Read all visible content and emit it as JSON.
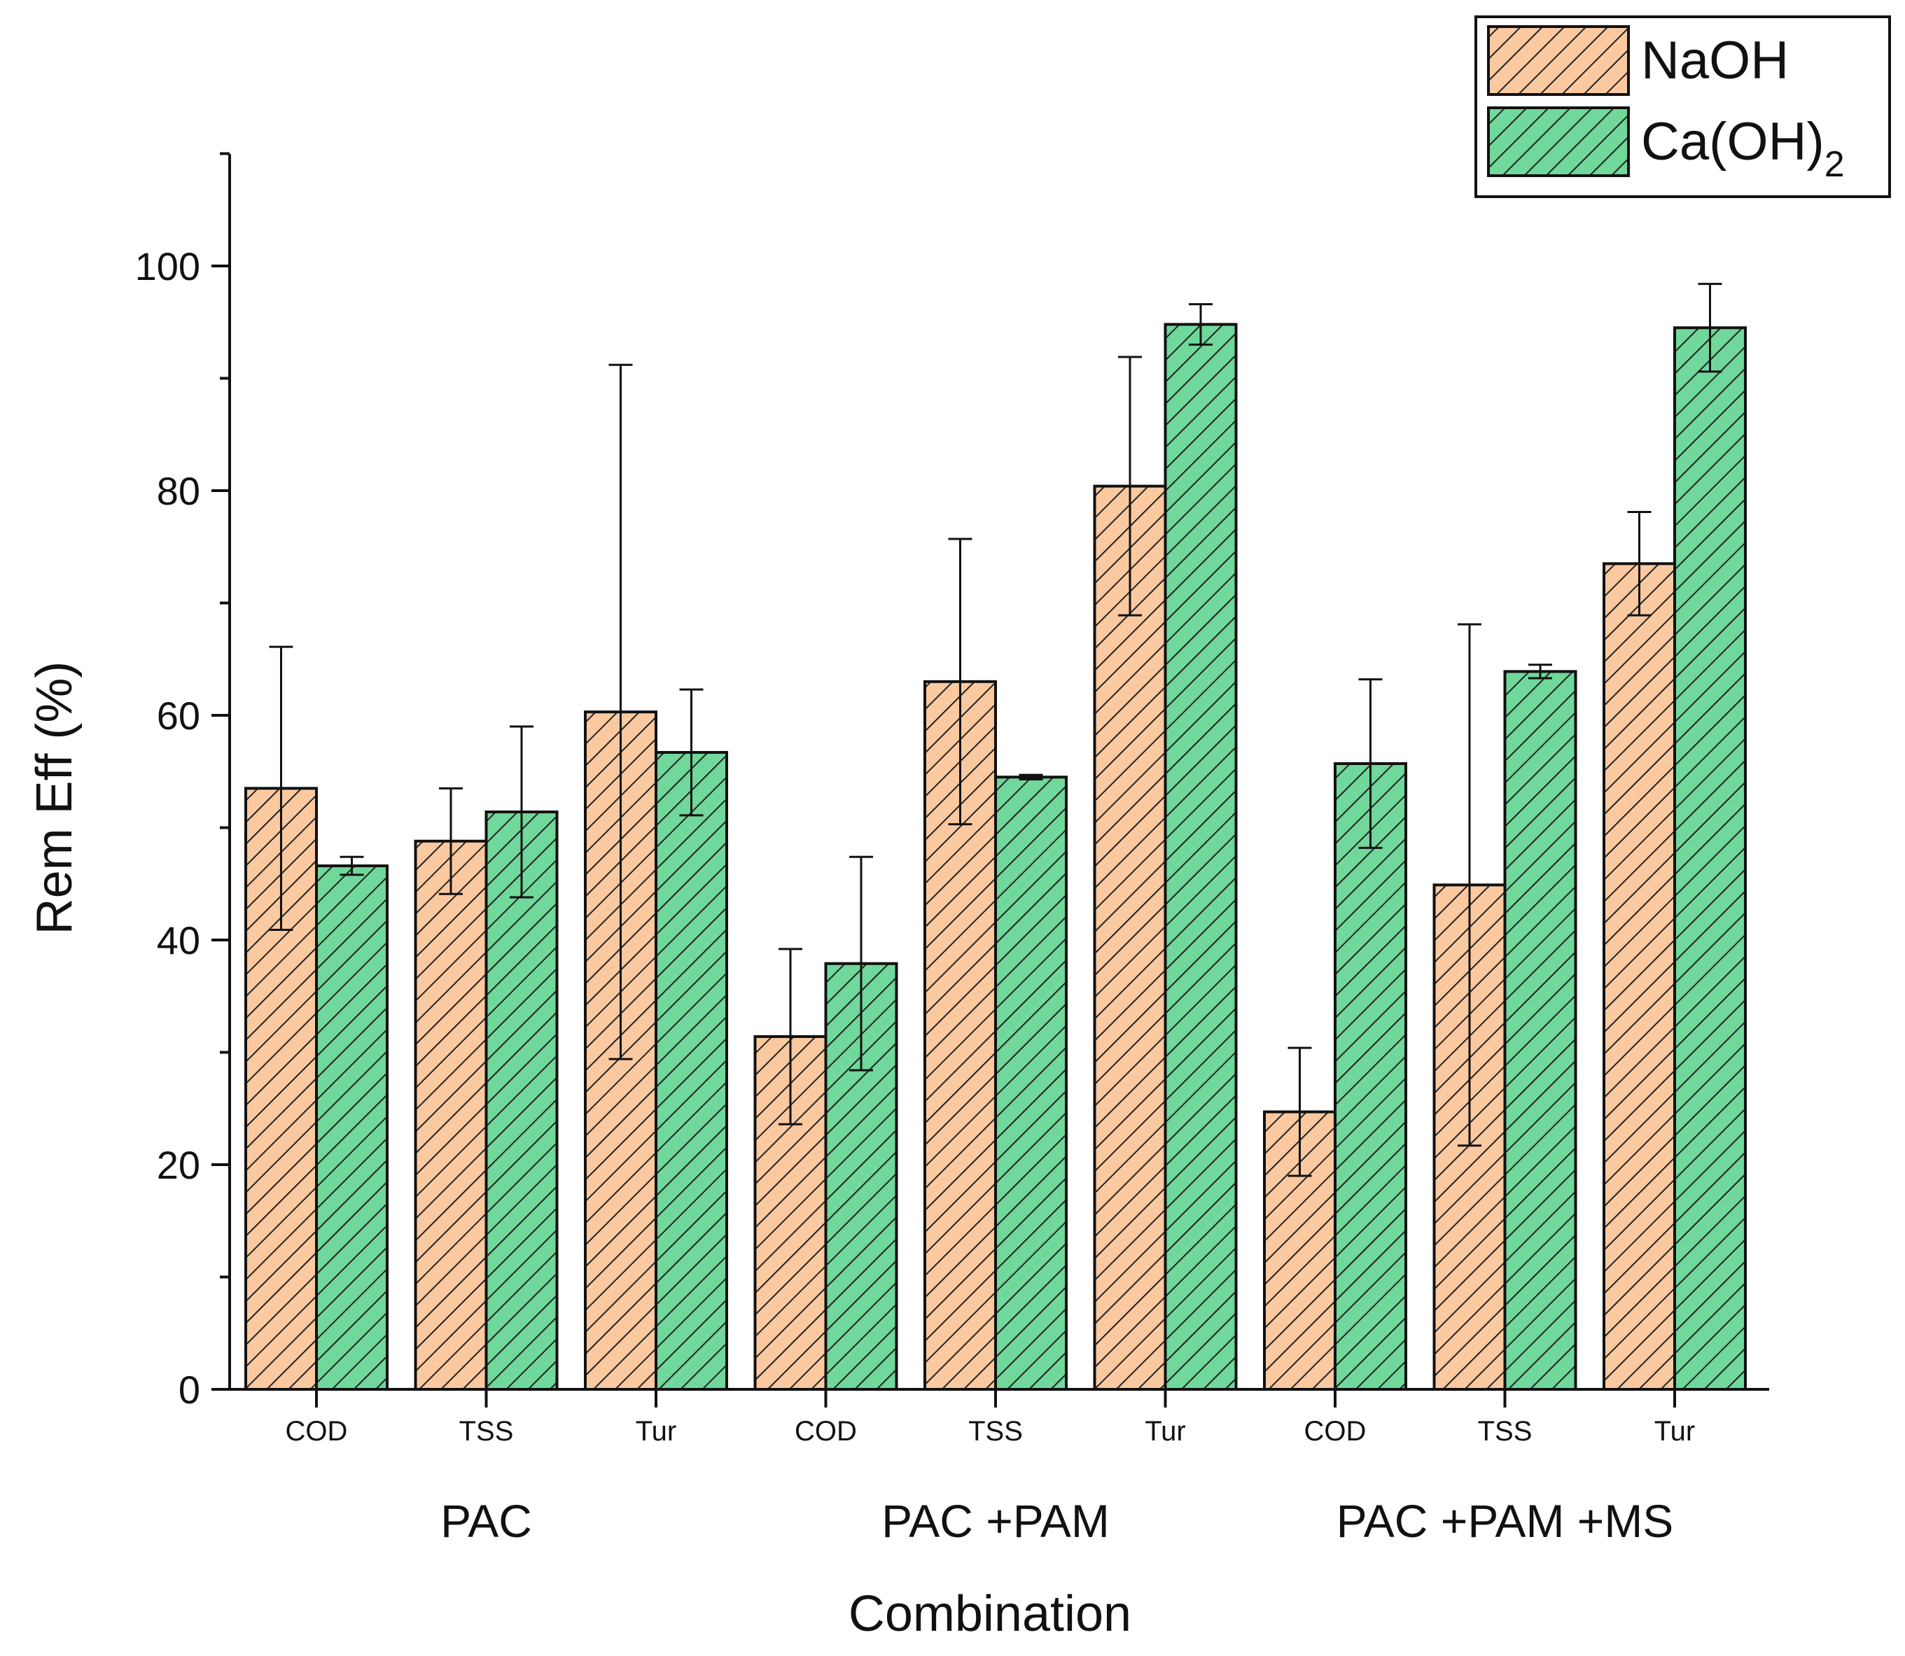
{
  "chart_data": {
    "type": "bar",
    "title": "",
    "xlabel": "Combination",
    "ylabel": "Rem Eff (%)",
    "ylim": [
      0,
      110
    ],
    "yticks": [
      0,
      20,
      40,
      60,
      80,
      100
    ],
    "grid": false,
    "legend_position": "top-right",
    "groups": [
      {
        "label": "PAC",
        "categories": [
          "COD",
          "TSS",
          "Tur"
        ]
      },
      {
        "label": "PAC +PAM",
        "categories": [
          "COD",
          "TSS",
          "Tur"
        ]
      },
      {
        "label": "PAC +PAM +MS",
        "categories": [
          "COD",
          "TSS",
          "Tur"
        ]
      }
    ],
    "categories": [
      "COD",
      "TSS",
      "Tur",
      "COD",
      "TSS",
      "Tur",
      "COD",
      "TSS",
      "Tur"
    ],
    "series": [
      {
        "name": "NaOH",
        "color": "#FBC9A0",
        "hatch_color": "#222222",
        "values": [
          53.5,
          48.8,
          60.3,
          31.4,
          63.0,
          80.4,
          24.7,
          44.9,
          73.5
        ],
        "error": [
          12.6,
          4.7,
          30.9,
          7.8,
          12.7,
          11.5,
          5.7,
          23.2,
          4.6
        ]
      },
      {
        "name": "Ca(OH)2",
        "legend_main": "Ca(OH)",
        "legend_sub": "2",
        "color": "#6FD89A",
        "hatch_color": "#222222",
        "values": [
          46.6,
          51.4,
          56.7,
          37.9,
          54.5,
          94.8,
          55.7,
          63.9,
          94.5
        ],
        "error": [
          0.8,
          7.6,
          5.6,
          9.5,
          0.2,
          1.8,
          7.5,
          0.6,
          3.9
        ]
      }
    ]
  }
}
